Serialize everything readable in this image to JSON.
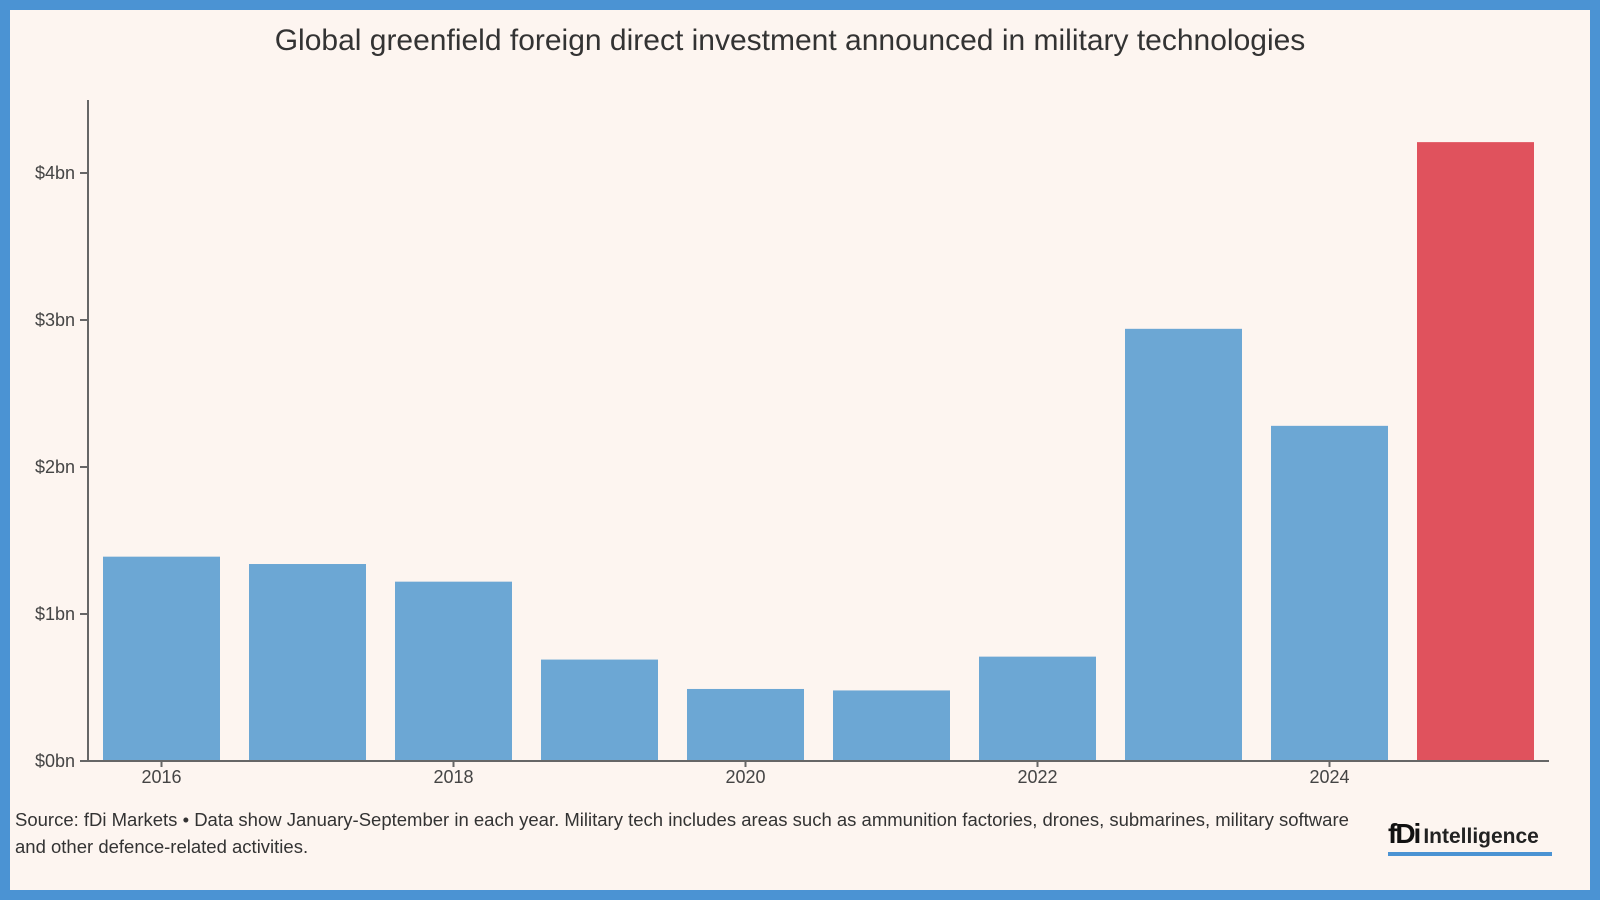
{
  "chart_data": {
    "type": "bar",
    "title": "Global greenfield foreign direct investment announced in military technologies",
    "categories": [
      "2016",
      "2017",
      "2018",
      "2019",
      "2020",
      "2021",
      "2022",
      "2023",
      "2024",
      "2025"
    ],
    "values": [
      1.39,
      1.34,
      1.22,
      0.69,
      0.49,
      0.48,
      0.71,
      2.94,
      2.28,
      4.21
    ],
    "unit": "US$ bn",
    "x_tick_labels": [
      "2016",
      "2018",
      "2020",
      "2022",
      "2024"
    ],
    "y_ticks": [
      0,
      1,
      2,
      3,
      4
    ],
    "y_tick_labels": [
      "$0bn",
      "$1bn",
      "$2bn",
      "$3bn",
      "$4bn"
    ],
    "ylim": [
      0,
      4.5
    ],
    "grid": false,
    "colors": {
      "default": "#6ca7d4",
      "highlight": "#e0525d",
      "highlight_index": 9
    }
  },
  "footer": {
    "source_note": "Source: fDi Markets • Data show January-September in each year. Military tech includes areas such as ammunition factories, drones, submarines, military software and other defence-related activities.",
    "logo_text": "fDi Intelligence"
  }
}
